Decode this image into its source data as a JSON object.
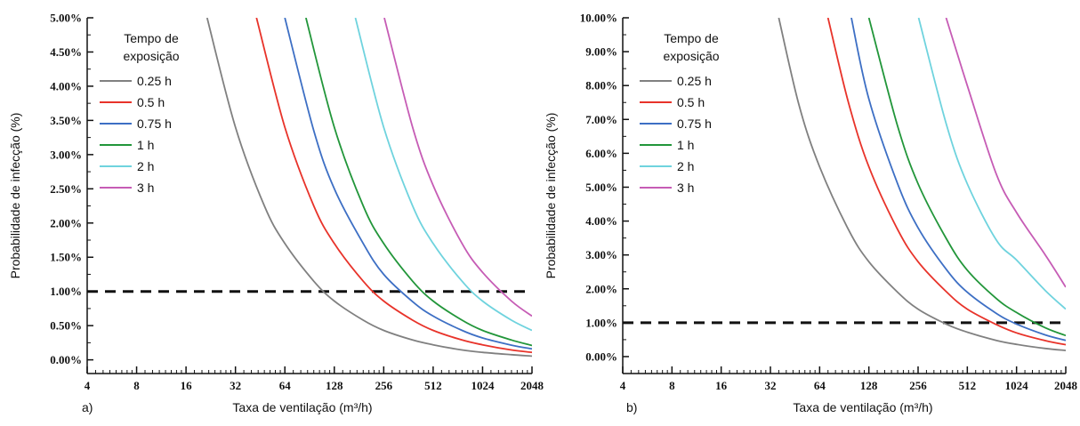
{
  "chart_data": [
    {
      "type": "line",
      "panel_label": "a)",
      "xlabel": "Taxa de ventilação (m³/h)",
      "ylabel": "Probabilidade de infecção (%)",
      "x_scale": "log2",
      "xlim": [
        4,
        2048
      ],
      "ylim": [
        -0.2,
        5.0
      ],
      "xticks": [
        4,
        8,
        16,
        32,
        64,
        128,
        256,
        512,
        1024,
        2048
      ],
      "xtick_labels": [
        "4",
        "8",
        "16",
        "32",
        "64",
        "128",
        "256",
        "512",
        "1024",
        "2048"
      ],
      "yticks": [
        0,
        0.5,
        1,
        1.5,
        2,
        2.5,
        3,
        3.5,
        4,
        4.5,
        5
      ],
      "ytick_labels": [
        "0.00%",
        "0.50%",
        "1.00%",
        "1.50%",
        "2.00%",
        "2.50%",
        "3.00%",
        "3.50%",
        "4.00%",
        "4.50%",
        "5.00%"
      ],
      "legend_title": "Tempo de exposição",
      "legend_position": "top-left",
      "threshold": 1.0,
      "series": [
        {
          "name": "0.25 h",
          "color": "#808080",
          "x": [
            21.5,
            32,
            48,
            64,
            96,
            128,
            192,
            256,
            384,
            512,
            768,
            1024,
            1536,
            2048
          ],
          "y": [
            5.0,
            3.4,
            2.25,
            1.7,
            1.15,
            0.86,
            0.58,
            0.43,
            0.29,
            0.22,
            0.145,
            0.11,
            0.075,
            0.055
          ]
        },
        {
          "name": "0.5 h",
          "color": "#e8332a",
          "x": [
            43,
            64,
            96,
            128,
            192,
            256,
            384,
            512,
            768,
            1024,
            1536,
            2048
          ],
          "y": [
            5.0,
            3.4,
            2.25,
            1.7,
            1.15,
            0.86,
            0.58,
            0.43,
            0.29,
            0.22,
            0.145,
            0.11
          ]
        },
        {
          "name": "0.75 h",
          "color": "#3d6fc4",
          "x": [
            64,
            96,
            128,
            192,
            256,
            384,
            512,
            768,
            1024,
            1536,
            2048
          ],
          "y": [
            5.0,
            3.35,
            2.5,
            1.7,
            1.25,
            0.85,
            0.64,
            0.43,
            0.32,
            0.215,
            0.16
          ]
        },
        {
          "name": "1 h",
          "color": "#22963a",
          "x": [
            86,
            128,
            192,
            256,
            384,
            512,
            768,
            1024,
            1536,
            2048
          ],
          "y": [
            5.0,
            3.4,
            2.25,
            1.7,
            1.15,
            0.86,
            0.58,
            0.43,
            0.29,
            0.21
          ]
        },
        {
          "name": "2 h",
          "color": "#6fd3de",
          "x": [
            172,
            256,
            384,
            512,
            768,
            1024,
            1536,
            2048
          ],
          "y": [
            5.0,
            3.4,
            2.25,
            1.7,
            1.15,
            0.86,
            0.58,
            0.43
          ]
        },
        {
          "name": "3 h",
          "color": "#c65cb5",
          "x": [
            258,
            384,
            512,
            768,
            1024,
            1536,
            2048
          ],
          "y": [
            5.0,
            3.4,
            2.55,
            1.7,
            1.28,
            0.86,
            0.64
          ]
        }
      ]
    },
    {
      "type": "line",
      "panel_label": "b)",
      "xlabel": "Taxa de ventilação (m³/h)",
      "ylabel": "Probabilidade de infecção (%)",
      "x_scale": "log2",
      "xlim": [
        4,
        2048
      ],
      "ylim": [
        -0.5,
        10.0
      ],
      "xticks": [
        4,
        8,
        16,
        32,
        64,
        128,
        256,
        512,
        1024,
        2048
      ],
      "xtick_labels": [
        "4",
        "8",
        "16",
        "32",
        "64",
        "128",
        "256",
        "512",
        "1024",
        "2048"
      ],
      "yticks": [
        0,
        1,
        2,
        3,
        4,
        5,
        6,
        7,
        8,
        9,
        10
      ],
      "ytick_labels": [
        "0.00%",
        "1.00%",
        "2.00%",
        "3.00%",
        "4.00%",
        "5.00%",
        "6.00%",
        "7.00%",
        "8.00%",
        "9.00%",
        "10.00%"
      ],
      "legend_title": "Tempo de exposição",
      "legend_position": "top-left",
      "threshold": 1.0,
      "series": [
        {
          "name": "0.25 h",
          "color": "#808080",
          "x": [
            36,
            48,
            64,
            96,
            128,
            192,
            256,
            384,
            512,
            768,
            1024,
            1536,
            2048
          ],
          "y": [
            10.0,
            7.4,
            5.6,
            3.75,
            2.8,
            1.9,
            1.4,
            0.95,
            0.72,
            0.48,
            0.36,
            0.24,
            0.18
          ]
        },
        {
          "name": "0.5 h",
          "color": "#e8332a",
          "x": [
            72,
            96,
            128,
            192,
            256,
            384,
            512,
            768,
            1024,
            1536,
            2048
          ],
          "y": [
            10.0,
            7.5,
            5.6,
            3.75,
            2.8,
            1.9,
            1.4,
            0.95,
            0.7,
            0.47,
            0.35
          ]
        },
        {
          "name": "0.75 h",
          "color": "#3d6fc4",
          "x": [
            100,
            128,
            192,
            256,
            384,
            512,
            768,
            1024,
            1536,
            2048
          ],
          "y": [
            10.0,
            7.6,
            5.1,
            3.8,
            2.55,
            1.9,
            1.28,
            0.96,
            0.64,
            0.48
          ]
        },
        {
          "name": "1 h",
          "color": "#22963a",
          "x": [
            128,
            192,
            256,
            384,
            512,
            768,
            1024,
            1536,
            2048
          ],
          "y": [
            10.0,
            6.8,
            5.1,
            3.45,
            2.55,
            1.72,
            1.3,
            0.85,
            0.62
          ]
        },
        {
          "name": "2 h",
          "color": "#6fd3de",
          "x": [
            258,
            384,
            512,
            768,
            1024,
            1536,
            2048
          ],
          "y": [
            10.0,
            6.8,
            5.1,
            3.45,
            2.85,
            1.95,
            1.4
          ]
        },
        {
          "name": "3 h",
          "color": "#c65cb5",
          "x": [
            380,
            512,
            768,
            1024,
            1536,
            2048
          ],
          "y": [
            10.0,
            8.0,
            5.4,
            4.25,
            3.0,
            2.05
          ]
        }
      ]
    }
  ]
}
